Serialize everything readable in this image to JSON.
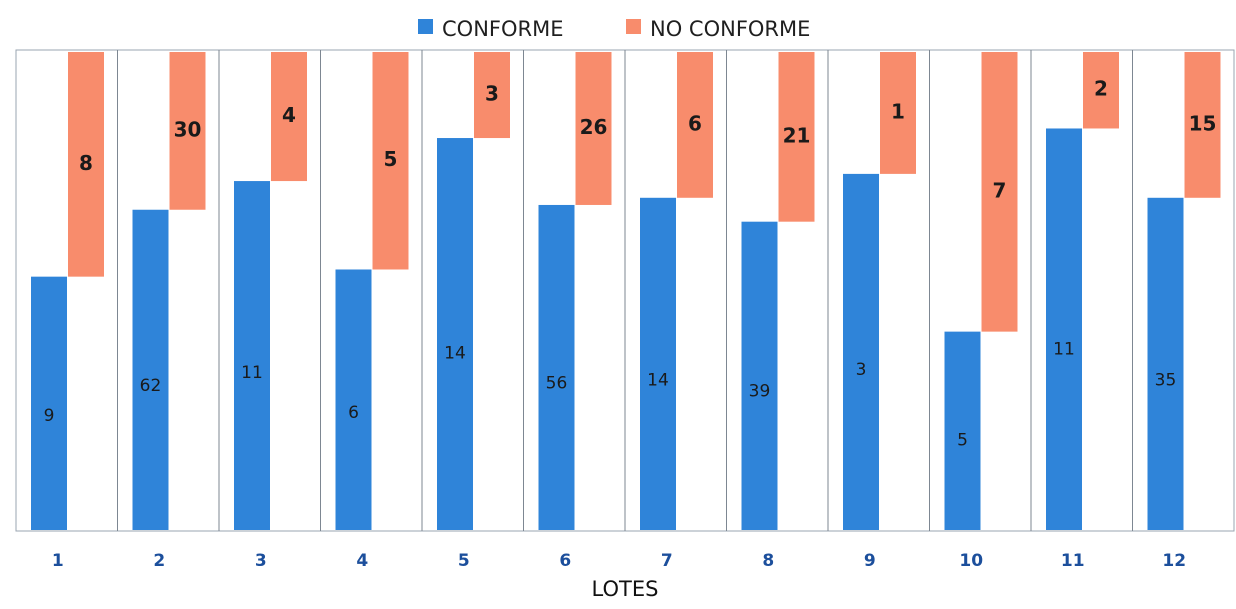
{
  "chart_data": {
    "type": "bar",
    "categories": [
      "1",
      "2",
      "3",
      "4",
      "5",
      "6",
      "7",
      "8",
      "9",
      "10",
      "11",
      "12"
    ],
    "xlabel": "LOTES",
    "legend_position": "top-center",
    "series": [
      {
        "name": "CONFORME",
        "color": "#2f84d9",
        "values": [
          9,
          62,
          11,
          6,
          14,
          56,
          14,
          39,
          3,
          5,
          11,
          35
        ],
        "fill_fraction": [
          0.53,
          0.67,
          0.73,
          0.545,
          0.82,
          0.68,
          0.695,
          0.645,
          0.745,
          0.415,
          0.84,
          0.695
        ]
      },
      {
        "name": "NO CONFORME",
        "color": "#f88c6c",
        "values": [
          8,
          30,
          4,
          5,
          3,
          26,
          6,
          21,
          1,
          7,
          2,
          15
        ],
        "fill_fraction": [
          0.47,
          0.33,
          0.27,
          0.455,
          0.18,
          0.32,
          0.305,
          0.355,
          0.255,
          0.585,
          0.16,
          0.305
        ]
      }
    ],
    "ylim": [
      0,
      1
    ],
    "grid": "vertical separators"
  }
}
